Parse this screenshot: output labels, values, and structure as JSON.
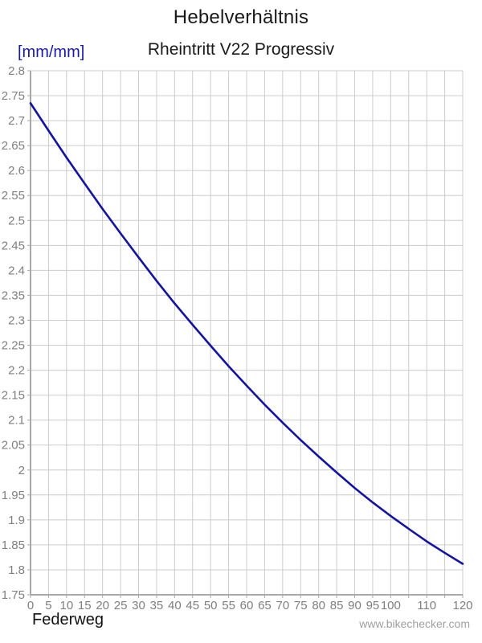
{
  "header": {
    "title": "Hebelverhältnis",
    "subtitle": "Rheintritt V22 Progressiv",
    "y_unit": "[mm/mm]"
  },
  "footer": {
    "x_axis_label": "Federweg",
    "watermark": "www.bikechecker.com"
  },
  "colors": {
    "curve": "#1414a0",
    "grid": "#cccccc",
    "axis": "#a8a8a8",
    "tick_label": "#7f7f7f",
    "title_text": "#1a1a1a",
    "unit_label_text": "#1a1aa6",
    "watermark_text": "#a0a0a0"
  },
  "chart_data": {
    "type": "line",
    "title": "Hebelverhältnis",
    "subtitle": "Rheintritt V22 Progressiv",
    "xlabel": "Federweg",
    "ylabel": "[mm/mm]",
    "xlim": [
      0,
      120
    ],
    "ylim": [
      1.75,
      2.8
    ],
    "grid": true,
    "legend": "none",
    "x_ticks": [
      {
        "value": 0,
        "label": "0"
      },
      {
        "value": 5,
        "label": "5"
      },
      {
        "value": 10,
        "label": "10"
      },
      {
        "value": 15,
        "label": "15"
      },
      {
        "value": 20,
        "label": "20"
      },
      {
        "value": 25,
        "label": "25"
      },
      {
        "value": 30,
        "label": "30"
      },
      {
        "value": 35,
        "label": "35"
      },
      {
        "value": 40,
        "label": "40"
      },
      {
        "value": 45,
        "label": "45"
      },
      {
        "value": 50,
        "label": "50"
      },
      {
        "value": 55,
        "label": "55"
      },
      {
        "value": 60,
        "label": "60"
      },
      {
        "value": 65,
        "label": "65"
      },
      {
        "value": 70,
        "label": "70"
      },
      {
        "value": 75,
        "label": "75"
      },
      {
        "value": 80,
        "label": "80"
      },
      {
        "value": 85,
        "label": "85"
      },
      {
        "value": 90,
        "label": "90"
      },
      {
        "value": 95,
        "label": "95"
      },
      {
        "value": 100,
        "label": "100"
      },
      {
        "value": 105,
        "label": ""
      },
      {
        "value": 110,
        "label": "110"
      },
      {
        "value": 115,
        "label": ""
      },
      {
        "value": 120,
        "label": "120"
      }
    ],
    "y_ticks": [
      {
        "value": 2.8,
        "label": "2.8"
      },
      {
        "value": 2.75,
        "label": "2.75"
      },
      {
        "value": 2.7,
        "label": "2.7"
      },
      {
        "value": 2.65,
        "label": "2.65"
      },
      {
        "value": 2.6,
        "label": "2.6"
      },
      {
        "value": 2.55,
        "label": "2.55"
      },
      {
        "value": 2.5,
        "label": "2.5"
      },
      {
        "value": 2.45,
        "label": "2.45"
      },
      {
        "value": 2.4,
        "label": "2.4"
      },
      {
        "value": 2.35,
        "label": "2.35"
      },
      {
        "value": 2.3,
        "label": "2.3"
      },
      {
        "value": 2.25,
        "label": "2.25"
      },
      {
        "value": 2.2,
        "label": "2.2"
      },
      {
        "value": 2.15,
        "label": "2.15"
      },
      {
        "value": 2.1,
        "label": "2.1"
      },
      {
        "value": 2.05,
        "label": "2.05"
      },
      {
        "value": 2.0,
        "label": "2"
      },
      {
        "value": 1.95,
        "label": "1.95"
      },
      {
        "value": 1.9,
        "label": "1.9"
      },
      {
        "value": 1.85,
        "label": "1.85"
      },
      {
        "value": 1.8,
        "label": "1.8"
      },
      {
        "value": 1.75,
        "label": "1.75"
      }
    ],
    "series": [
      {
        "name": "Hebelverhältnis Rheintritt V22 Progressiv",
        "color": "#1414a0",
        "x": [
          0,
          5,
          10,
          15,
          20,
          25,
          30,
          35,
          40,
          45,
          50,
          55,
          60,
          65,
          70,
          75,
          80,
          85,
          90,
          95,
          100,
          105,
          110,
          115,
          120
        ],
        "y": [
          2.735,
          2.68,
          2.626,
          2.574,
          2.523,
          2.474,
          2.426,
          2.379,
          2.334,
          2.291,
          2.249,
          2.208,
          2.169,
          2.131,
          2.095,
          2.06,
          2.027,
          1.995,
          1.964,
          1.935,
          1.908,
          1.882,
          1.857,
          1.834,
          1.812
        ]
      }
    ]
  }
}
